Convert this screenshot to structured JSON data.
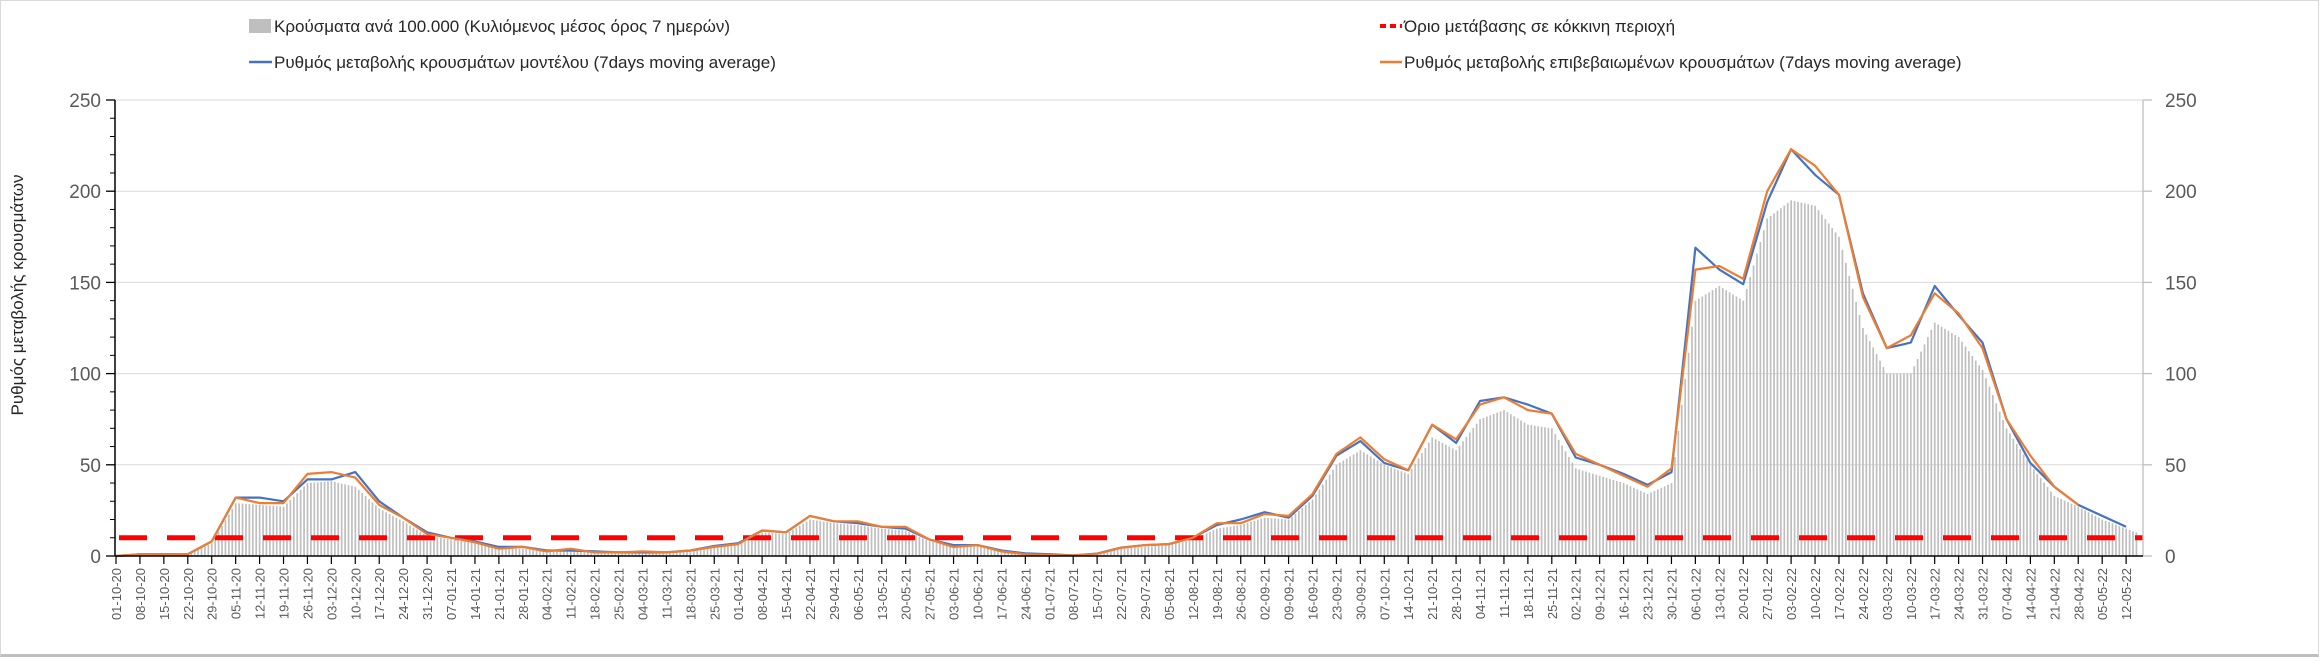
{
  "chart_data": {
    "type": "bar+line",
    "ylabel": "Ρυθμός μεταβολής κρουσμάτων",
    "ylim": [
      0,
      250
    ],
    "yticks": [
      0,
      50,
      100,
      150,
      200,
      250
    ],
    "y2ticks": [
      0,
      50,
      100,
      150,
      200,
      250
    ],
    "grid": true,
    "legend_position": "top",
    "legend": {
      "bars": "Κρούσματα ανά 100.000 (Κυλιόμενος μέσος όρος 7 ημερών)",
      "threshold": "Όριο μετάβασης σε κόκκινη περιοχή",
      "model": "Ρυθμός μεταβολής κρουσμάτων μοντέλου (7days moving average)",
      "confirmed": "Ρυθμός μεταβολής επιβεβαιωμένων κρουσμάτων (7days moving average)"
    },
    "colors": {
      "bars": "#bfbfbf",
      "threshold": "#ff0000",
      "model": "#4472c4",
      "confirmed": "#ed7d31",
      "grid": "#d9d9d9"
    },
    "threshold": 10,
    "x": [
      "01-10-20",
      "08-10-20",
      "15-10-20",
      "22-10-20",
      "29-10-20",
      "05-11-20",
      "12-11-20",
      "19-11-20",
      "26-11-20",
      "03-12-20",
      "10-12-20",
      "17-12-20",
      "24-12-20",
      "31-12-20",
      "07-01-21",
      "14-01-21",
      "21-01-21",
      "28-01-21",
      "04-02-21",
      "11-02-21",
      "18-02-21",
      "25-02-21",
      "04-03-21",
      "11-03-21",
      "18-03-21",
      "25-03-21",
      "01-04-21",
      "08-04-21",
      "15-04-21",
      "22-04-21",
      "29-04-21",
      "06-05-21",
      "13-05-21",
      "20-05-21",
      "27-05-21",
      "03-06-21",
      "10-06-21",
      "17-06-21",
      "24-06-21",
      "01-07-21",
      "08-07-21",
      "15-07-21",
      "22-07-21",
      "29-07-21",
      "05-08-21",
      "12-08-21",
      "19-08-21",
      "26-08-21",
      "02-09-21",
      "09-09-21",
      "16-09-21",
      "23-09-21",
      "30-09-21",
      "07-10-21",
      "14-10-21",
      "21-10-21",
      "28-10-21",
      "04-11-21",
      "11-11-21",
      "18-11-21",
      "25-11-21",
      "02-12-21",
      "09-12-21",
      "16-12-21",
      "23-12-21",
      "30-12-21",
      "06-01-22",
      "13-01-22",
      "20-01-22",
      "27-01-22",
      "03-02-22",
      "10-02-22",
      "17-02-22",
      "24-02-22",
      "03-03-22",
      "10-03-22",
      "17-03-22",
      "24-03-22",
      "31-03-22",
      "07-04-22",
      "14-04-22",
      "21-04-22",
      "28-04-22",
      "05-05-22",
      "12-05-22"
    ],
    "series": [
      {
        "name": "bars",
        "type": "bar",
        "values": [
          0,
          0.5,
          0.5,
          1,
          7,
          29,
          28,
          27,
          40,
          41,
          38,
          26,
          19,
          11,
          9,
          7,
          4,
          4,
          2.5,
          3,
          2,
          2,
          2,
          2,
          2.5,
          4.5,
          6,
          13,
          12,
          20,
          18,
          17,
          15,
          14,
          8,
          5,
          5.5,
          2.5,
          1,
          0.5,
          0.3,
          1,
          4,
          5,
          6,
          9,
          15,
          17,
          21,
          20,
          31,
          50,
          58,
          50,
          45,
          65,
          58,
          75,
          80,
          72,
          70,
          48,
          44,
          40,
          34,
          40,
          140,
          148,
          140,
          185,
          195,
          192,
          175,
          125,
          100,
          100,
          128,
          120,
          102,
          70,
          50,
          33,
          27,
          20,
          15
        ]
      },
      {
        "name": "model",
        "type": "line",
        "values": [
          0,
          1,
          1,
          1,
          8,
          32,
          32,
          30,
          42,
          42,
          46,
          30,
          21,
          13,
          10,
          8,
          5,
          5,
          3,
          3,
          2.5,
          2,
          2,
          2,
          3,
          5.5,
          7,
          14,
          13,
          22,
          19,
          18,
          16,
          15,
          9,
          6,
          6,
          3,
          1.5,
          1,
          0.4,
          1.3,
          4.6,
          6,
          6.5,
          10,
          17,
          20,
          24,
          21,
          33,
          55,
          63,
          51,
          47,
          72,
          62,
          85,
          87,
          83,
          78,
          54,
          50,
          45,
          39,
          46,
          169,
          157,
          149,
          194,
          223,
          209,
          198,
          144,
          114,
          117,
          148,
          132,
          117,
          75,
          51,
          38,
          28,
          22,
          16
        ]
      },
      {
        "name": "confirmed",
        "type": "line",
        "values": [
          0,
          1,
          1,
          1,
          8,
          32,
          29,
          29,
          45,
          46,
          43,
          28,
          21,
          12,
          10,
          7.5,
          4,
          5,
          2.5,
          4,
          2,
          2,
          2.5,
          2,
          3,
          5,
          6.5,
          14,
          13,
          22,
          19,
          19,
          16,
          16,
          9,
          5,
          6,
          2.5,
          1,
          0.5,
          0.3,
          1.2,
          4.5,
          6,
          6.5,
          10,
          18,
          18,
          23,
          22,
          34,
          56,
          65,
          53,
          47,
          72,
          64,
          83,
          87,
          80,
          78,
          56,
          50,
          44,
          38,
          48,
          157,
          159,
          152,
          200,
          223,
          214,
          198,
          142,
          114,
          121,
          144,
          133,
          114,
          75,
          55,
          38,
          28,
          null,
          null
        ]
      }
    ]
  }
}
